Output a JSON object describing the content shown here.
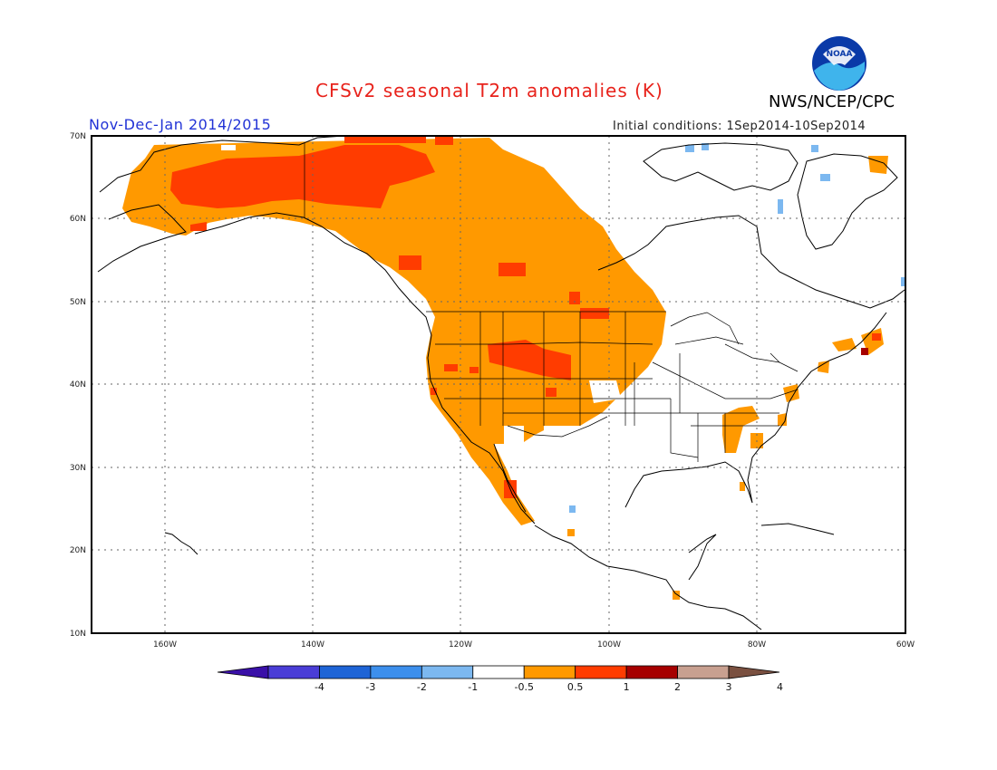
{
  "header": {
    "title": "CFSv2 seasonal T2m anomalies (K)",
    "period": "Nov-Dec-Jan 2014/2015",
    "initial_conditions": "Initial conditions: 1Sep2014-10Sep2014",
    "agency": "NWS/NCEP/CPC",
    "logo_text": "NOAA"
  },
  "map": {
    "region": "North America",
    "lat_range": [
      10,
      70
    ],
    "lon_range": [
      -172,
      -60
    ],
    "lat_labels": [
      "70N",
      "60N",
      "50N",
      "40N",
      "30N",
      "20N",
      "10N"
    ],
    "lon_labels": [
      "160W",
      "140W",
      "120W",
      "100W",
      "80W",
      "60W"
    ],
    "grid": "dotted"
  },
  "colorbar": {
    "labels": [
      "-4",
      "-3",
      "-2",
      "-1",
      "-0.5",
      "0.5",
      "1",
      "2",
      "3",
      "4"
    ],
    "colors": [
      "#3a10a8",
      "#4a3dd6",
      "#1e64d6",
      "#3c8fec",
      "#7cb8f0",
      "#ffffff",
      "#ff9900",
      "#ff3c00",
      "#a60000",
      "#c8a090",
      "#7a5040"
    ]
  },
  "colors": {
    "anomaly_0_5_to_1": "#ff9900",
    "anomaly_1_to_2": "#ff3c00",
    "anomaly_2_to_3": "#a60000",
    "anomaly_neg_0_5_to_neg_1": "#7cb8f0",
    "title": "#e8231c",
    "period": "#2233d6"
  }
}
